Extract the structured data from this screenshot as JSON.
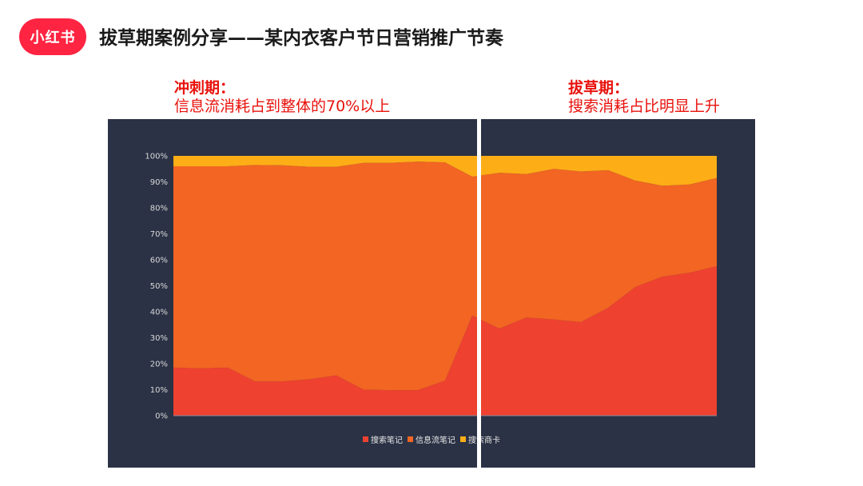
{
  "logo": {
    "text": "小红书",
    "color": "#ff2442"
  },
  "page_title": "拔草期案例分享——某内衣客户节日营销推广节奏",
  "annotations": {
    "left": {
      "heading": "冲刺期：",
      "body": "信息流消耗占到整体的70%以上"
    },
    "right": {
      "heading": "拔草期：",
      "body": "搜索消耗占比明显上升"
    }
  },
  "chart_data": {
    "type": "area",
    "stacked": true,
    "percent": true,
    "title": "",
    "xlabel": "",
    "ylabel": "",
    "ylim": [
      0,
      100
    ],
    "y_ticks": [
      "0%",
      "10%",
      "20%",
      "30%",
      "40%",
      "50%",
      "60%",
      "70%",
      "80%",
      "90%",
      "100%"
    ],
    "x_count": 21,
    "background": "#2b3245",
    "series": [
      {
        "name": "搜索笔记",
        "color": "#ee4130",
        "values": [
          18.5,
          18.2,
          18.5,
          13.2,
          13.2,
          14.0,
          15.5,
          10.0,
          9.8,
          9.8,
          13.5,
          38.5,
          33.5,
          37.8,
          37.0,
          36.0,
          41.5,
          49.5,
          53.5,
          55.0,
          57.5
        ]
      },
      {
        "name": "信息流笔记",
        "color": "#f26522",
        "values": [
          77.5,
          77.8,
          77.5,
          83.3,
          83.2,
          81.8,
          80.3,
          87.3,
          87.5,
          88.0,
          84.0,
          53.5,
          60.0,
          55.2,
          58.0,
          58.0,
          53.0,
          41.0,
          35.0,
          34.0,
          34.0
        ]
      },
      {
        "name": "搜索商卡",
        "color": "#fdae16",
        "values": [
          4.0,
          4.0,
          4.0,
          3.5,
          3.6,
          4.2,
          4.2,
          2.7,
          2.7,
          2.2,
          2.5,
          8.0,
          6.5,
          7.0,
          5.0,
          6.0,
          5.5,
          9.5,
          11.5,
          11.0,
          8.5
        ]
      }
    ],
    "legend_position": "bottom"
  }
}
